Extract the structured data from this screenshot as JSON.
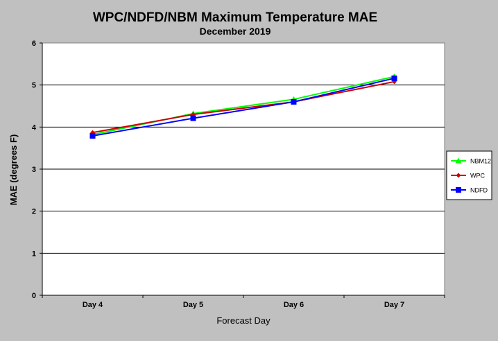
{
  "chart_data": {
    "type": "line",
    "title": "WPC/NDFD/NBM  Maximum Temperature MAE",
    "subtitle": "December 2019",
    "xlabel": "Forecast Day",
    "ylabel": "MAE (degrees F)",
    "categories": [
      "Day 4",
      "Day 5",
      "Day 6",
      "Day 7"
    ],
    "ylim": [
      0,
      6
    ],
    "yticks": [
      "0",
      "1",
      "2",
      "3",
      "4",
      "5",
      "6"
    ],
    "grid": "horizontal",
    "legend_position": "right",
    "series": [
      {
        "name": "NBM12",
        "color": "#00ff00",
        "marker": "triangle",
        "values": [
          3.82,
          4.32,
          4.66,
          5.2
        ]
      },
      {
        "name": "WPC",
        "color": "#cc0000",
        "marker": "diamond",
        "values": [
          3.87,
          4.3,
          4.6,
          5.08
        ]
      },
      {
        "name": "NDFD",
        "color": "#0000ff",
        "marker": "square",
        "values": [
          3.79,
          4.21,
          4.6,
          5.16
        ]
      }
    ]
  }
}
